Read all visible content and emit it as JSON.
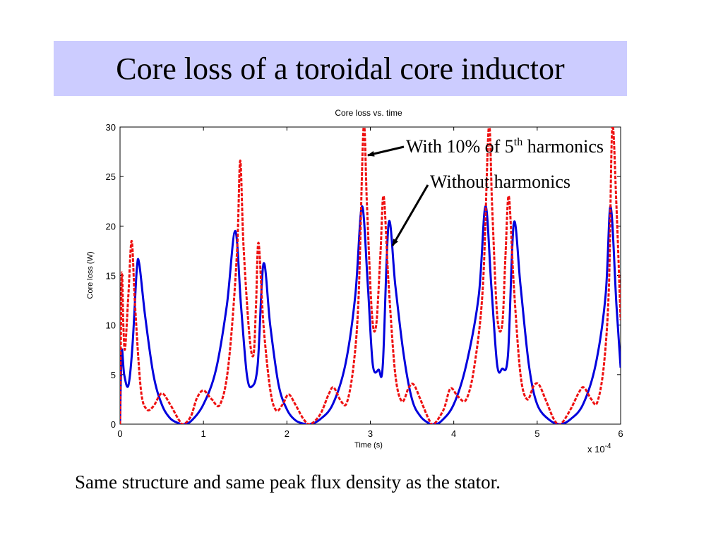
{
  "slide_title": "Core loss of a toroidal core inductor",
  "caption": "Same structure and same peak flux density as the stator.",
  "annotations": {
    "harmonic_pre": "With 10% of 5",
    "harmonic_sup": "th",
    "harmonic_post": " harmonics",
    "without": "Without harmonics"
  },
  "colors": {
    "title_bg": "#ccccff",
    "without": "#0000dd",
    "with": "#ee1111"
  },
  "chart_data": {
    "type": "line",
    "title": "Core loss vs. time",
    "xlabel": "Time (s)",
    "ylabel": "Core loss (W)",
    "x_multiplier": "x 10",
    "x_multiplier_exp": "-4",
    "xlim": [
      0,
      6
    ],
    "ylim": [
      0,
      30
    ],
    "xticks": [
      "0",
      "1",
      "2",
      "3",
      "4",
      "5",
      "6"
    ],
    "yticks": [
      "0",
      "5",
      "10",
      "15",
      "20",
      "25",
      "30"
    ],
    "grid": false,
    "series": [
      {
        "name": "Without harmonics",
        "color": "#0000dd",
        "style": "solid",
        "points": [
          [
            0,
            0
          ],
          [
            0.02,
            7.4
          ],
          [
            0.05,
            5
          ],
          [
            0.1,
            3.9
          ],
          [
            0.15,
            8
          ],
          [
            0.2,
            15.5
          ],
          [
            0.23,
            16.2
          ],
          [
            0.3,
            11
          ],
          [
            0.4,
            5
          ],
          [
            0.5,
            2
          ],
          [
            0.6,
            0.6
          ],
          [
            0.7,
            0.1
          ],
          [
            0.76,
            0
          ],
          [
            0.85,
            0.3
          ],
          [
            1.0,
            2
          ],
          [
            1.15,
            5.5
          ],
          [
            1.28,
            12
          ],
          [
            1.38,
            19.5
          ],
          [
            1.45,
            12
          ],
          [
            1.52,
            5
          ],
          [
            1.58,
            3.8
          ],
          [
            1.65,
            6
          ],
          [
            1.72,
            16.2
          ],
          [
            1.8,
            10
          ],
          [
            1.9,
            4
          ],
          [
            2.0,
            1.5
          ],
          [
            2.1,
            0.4
          ],
          [
            2.2,
            0.05
          ],
          [
            2.28,
            0
          ],
          [
            2.4,
            0.5
          ],
          [
            2.55,
            2
          ],
          [
            2.7,
            6
          ],
          [
            2.82,
            13
          ],
          [
            2.9,
            22
          ],
          [
            2.97,
            14
          ],
          [
            3.03,
            6
          ],
          [
            3.1,
            5.5
          ],
          [
            3.15,
            6
          ],
          [
            3.22,
            20.3
          ],
          [
            3.3,
            14
          ],
          [
            3.4,
            7
          ],
          [
            3.5,
            2.5
          ],
          [
            3.6,
            0.8
          ],
          [
            3.7,
            0.1
          ],
          [
            3.76,
            0
          ],
          [
            3.85,
            0.3
          ],
          [
            4.0,
            2
          ],
          [
            4.15,
            6
          ],
          [
            4.3,
            13
          ],
          [
            4.38,
            22
          ],
          [
            4.45,
            14
          ],
          [
            4.52,
            6
          ],
          [
            4.58,
            5.6
          ],
          [
            4.65,
            7
          ],
          [
            4.72,
            20.3
          ],
          [
            4.8,
            14
          ],
          [
            4.9,
            6
          ],
          [
            5.0,
            2
          ],
          [
            5.15,
            0.4
          ],
          [
            5.28,
            0
          ],
          [
            5.4,
            0.5
          ],
          [
            5.55,
            2
          ],
          [
            5.7,
            6
          ],
          [
            5.82,
            13
          ],
          [
            5.88,
            22
          ],
          [
            5.95,
            12
          ],
          [
            6.0,
            5.7
          ]
        ]
      },
      {
        "name": "With 10% of 5th harmonics",
        "color": "#ee1111",
        "style": "dashed",
        "points": [
          [
            0,
            0
          ],
          [
            0.02,
            15
          ],
          [
            0.04,
            10
          ],
          [
            0.06,
            7.6
          ],
          [
            0.1,
            13
          ],
          [
            0.14,
            18.5
          ],
          [
            0.18,
            12
          ],
          [
            0.25,
            3.5
          ],
          [
            0.32,
            1.5
          ],
          [
            0.4,
            1.8
          ],
          [
            0.5,
            3.1
          ],
          [
            0.6,
            2
          ],
          [
            0.7,
            0.5
          ],
          [
            0.76,
            0
          ],
          [
            0.85,
            0.8
          ],
          [
            0.92,
            2.6
          ],
          [
            1.0,
            3.4
          ],
          [
            1.1,
            2.5
          ],
          [
            1.2,
            2
          ],
          [
            1.3,
            6
          ],
          [
            1.4,
            17
          ],
          [
            1.44,
            26.6
          ],
          [
            1.48,
            18
          ],
          [
            1.55,
            9
          ],
          [
            1.6,
            7
          ],
          [
            1.63,
            12
          ],
          [
            1.66,
            18.3
          ],
          [
            1.72,
            10
          ],
          [
            1.8,
            3.5
          ],
          [
            1.87,
            1.4
          ],
          [
            1.95,
            2
          ],
          [
            2.02,
            3
          ],
          [
            2.1,
            2
          ],
          [
            2.2,
            0.5
          ],
          [
            2.28,
            0
          ],
          [
            2.4,
            1
          ],
          [
            2.5,
            3
          ],
          [
            2.56,
            3.7
          ],
          [
            2.65,
            2.3
          ],
          [
            2.72,
            2.2
          ],
          [
            2.8,
            6
          ],
          [
            2.86,
            13
          ],
          [
            2.92,
            30
          ],
          [
            2.96,
            22
          ],
          [
            3.02,
            11
          ],
          [
            3.07,
            10
          ],
          [
            3.12,
            17
          ],
          [
            3.16,
            23
          ],
          [
            3.22,
            14
          ],
          [
            3.3,
            5
          ],
          [
            3.38,
            2.3
          ],
          [
            3.46,
            3.7
          ],
          [
            3.52,
            4
          ],
          [
            3.6,
            2.5
          ],
          [
            3.7,
            0.5
          ],
          [
            3.76,
            0
          ],
          [
            3.88,
            1.5
          ],
          [
            3.96,
            3.6
          ],
          [
            4.05,
            2.8
          ],
          [
            4.15,
            2.5
          ],
          [
            4.25,
            6
          ],
          [
            4.35,
            14
          ],
          [
            4.42,
            30
          ],
          [
            4.46,
            22
          ],
          [
            4.52,
            11
          ],
          [
            4.58,
            10
          ],
          [
            4.62,
            17
          ],
          [
            4.66,
            23
          ],
          [
            4.72,
            14
          ],
          [
            4.8,
            5
          ],
          [
            4.88,
            2.5
          ],
          [
            4.96,
            3.9
          ],
          [
            5.02,
            4
          ],
          [
            5.1,
            2.5
          ],
          [
            5.2,
            0.5
          ],
          [
            5.28,
            0
          ],
          [
            5.4,
            1.5
          ],
          [
            5.5,
            3.2
          ],
          [
            5.56,
            3.7
          ],
          [
            5.65,
            2.5
          ],
          [
            5.72,
            2.2
          ],
          [
            5.8,
            6
          ],
          [
            5.86,
            14
          ],
          [
            5.9,
            30
          ],
          [
            5.95,
            22
          ],
          [
            6.0,
            10.5
          ]
        ]
      }
    ]
  }
}
